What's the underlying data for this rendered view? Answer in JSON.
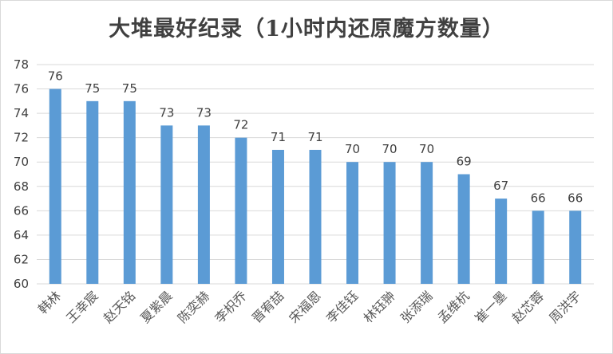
{
  "chart_data": {
    "type": "bar",
    "title": "大堆最好纪录（1小时内还原魔方数量）",
    "categories": [
      "韩林",
      "王幸宸",
      "赵天铭",
      "夏紫晨",
      "陈奕赫",
      "李枳乔",
      "晋宥喆",
      "宋福恩",
      "李佳钰",
      "林钰翀",
      "张添瑞",
      "孟维杭",
      "崔一墨",
      "赵芯蓉",
      "周洪宇"
    ],
    "values": [
      76,
      75,
      75,
      73,
      73,
      72,
      71,
      71,
      70,
      70,
      70,
      69,
      67,
      66,
      66
    ],
    "ylim": [
      60,
      78
    ],
    "yticks": [
      60,
      62,
      64,
      66,
      68,
      70,
      72,
      74,
      76,
      78
    ],
    "grid": true,
    "legend": "none",
    "colors": {
      "bar": "#5b9bd5",
      "grid": "#d9d9d9",
      "text": "#404040"
    }
  }
}
